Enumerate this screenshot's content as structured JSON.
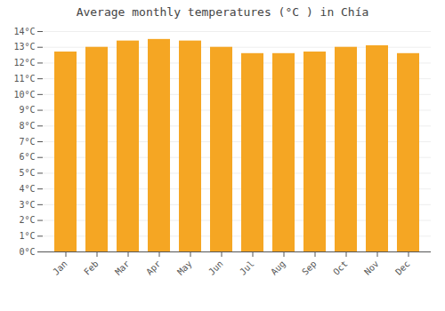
{
  "chart_data": {
    "type": "bar",
    "title": "Average monthly temperatures (°C ) in Chía",
    "categories": [
      "Jan",
      "Feb",
      "Mar",
      "Apr",
      "May",
      "Jun",
      "Jul",
      "Aug",
      "Sep",
      "Oct",
      "Nov",
      "Dec"
    ],
    "values": [
      12.7,
      13.0,
      13.4,
      13.5,
      13.4,
      13.0,
      12.6,
      12.6,
      12.7,
      13.0,
      13.1,
      12.6
    ],
    "color": "#F5A623",
    "ylim": [
      0,
      14
    ],
    "yticks": [
      {
        "value": 0,
        "label": "0°C"
      },
      {
        "value": 1,
        "label": "1°C"
      },
      {
        "value": 2,
        "label": "2°C"
      },
      {
        "value": 3,
        "label": "3°C"
      },
      {
        "value": 4,
        "label": "4°C"
      },
      {
        "value": 5,
        "label": "5°C"
      },
      {
        "value": 6,
        "label": "6°C"
      },
      {
        "value": 7,
        "label": "7°C"
      },
      {
        "value": 8,
        "label": "8°C"
      },
      {
        "value": 9,
        "label": "9°C"
      },
      {
        "value": 10,
        "label": "10°C"
      },
      {
        "value": 11,
        "label": "11°C"
      },
      {
        "value": 12,
        "label": "12°C"
      },
      {
        "value": 13,
        "label": "13°C"
      },
      {
        "value": 14,
        "label": "14°C"
      }
    ],
    "grid": true
  }
}
